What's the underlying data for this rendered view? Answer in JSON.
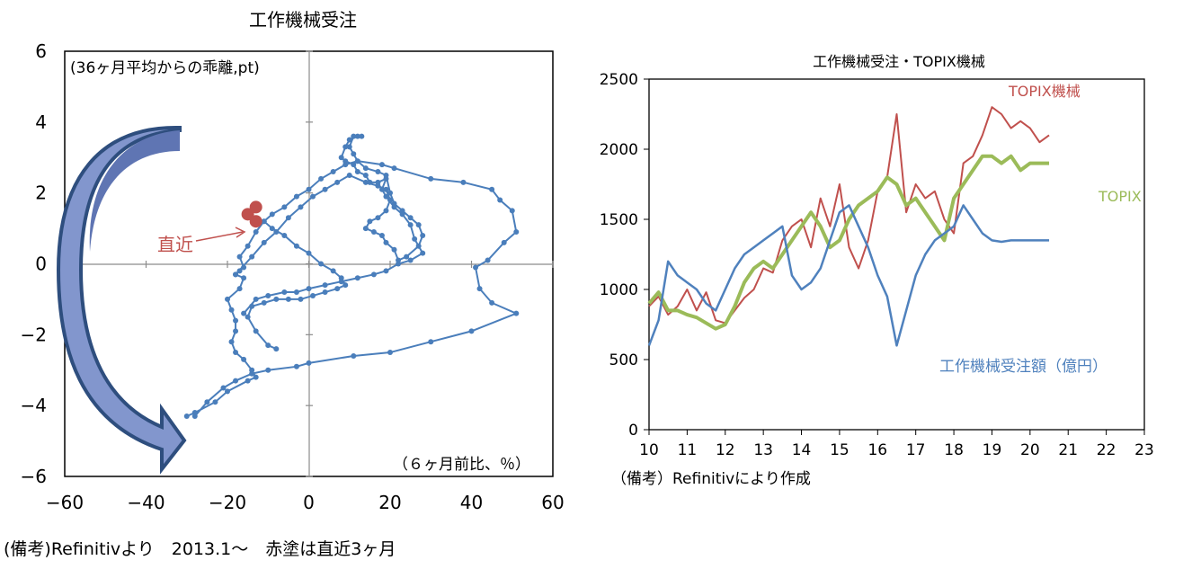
{
  "left_chart": {
    "title": "工作機械受注",
    "inner_label_top": "(36ヶ月平均からの乖離,pt)",
    "inner_label_bottom": "（６ヶ月前比、％）",
    "annotation": "直近",
    "x_ticks": [
      "−60",
      "−40",
      "−20",
      "0",
      "20",
      "40",
      "60"
    ],
    "y_ticks": [
      "6",
      "4",
      "2",
      "0",
      "−2",
      "−4",
      "−6"
    ],
    "footnote": "(備考)Refinitivより　2013.1～　赤塗は直近3ヶ月",
    "colors": {
      "line": "#4a7ebb",
      "recent": "#c0504d",
      "arrow_fill": "#7f93c8",
      "arrow_stroke": "#2e4e7e"
    }
  },
  "right_chart": {
    "title": "工作機械受注・TOPIX機械",
    "x_ticks": [
      "10",
      "11",
      "12",
      "13",
      "14",
      "15",
      "16",
      "17",
      "18",
      "19",
      "20",
      "21",
      "22",
      "23"
    ],
    "y_ticks": [
      "2500",
      "2000",
      "1500",
      "1000",
      "500",
      "0"
    ],
    "labels": {
      "topix_machinery": "TOPIX機械",
      "topix": "TOPIX",
      "orders": "工作機械受注額（億円）"
    },
    "footnote": "（備考）Refinitivにより作成",
    "colors": {
      "topix_machinery": "#c0504d",
      "topix": "#9bbb59",
      "orders": "#4f81bd"
    }
  },
  "chart_data": [
    {
      "type": "scatter",
      "title": "工作機械受注",
      "xlabel": "（６ヶ月前比、％）",
      "ylabel": "(36ヶ月平均からの乖離,pt)",
      "xlim": [
        -60,
        60
      ],
      "ylim": [
        -6,
        6
      ],
      "series": [
        {
          "values": [
            [
              -30,
              -4.3
            ],
            [
              -28,
              -4.2
            ],
            [
              -23,
              -3.9
            ],
            [
              -20,
              -3.6
            ],
            [
              -15,
              -3.3
            ],
            [
              -13,
              -3.2
            ],
            [
              -14,
              -3.0
            ],
            [
              -16,
              -2.7
            ],
            [
              -18,
              -2.5
            ],
            [
              -19,
              -2.2
            ],
            [
              -18,
              -1.9
            ],
            [
              -18,
              -1.6
            ],
            [
              -19,
              -1.3
            ],
            [
              -20,
              -1.0
            ],
            [
              -17,
              -0.7
            ],
            [
              -16,
              -0.4
            ],
            [
              -18,
              -0.3
            ],
            [
              -17,
              -0.2
            ],
            [
              -16,
              -0.1
            ],
            [
              -17,
              0.2
            ],
            [
              -15,
              0.5
            ],
            [
              -13,
              0.9
            ],
            [
              -11,
              1.2
            ],
            [
              -9,
              1.4
            ],
            [
              -6,
              1.6
            ],
            [
              -3,
              1.9
            ],
            [
              0,
              2.1
            ],
            [
              3,
              2.4
            ],
            [
              6,
              2.6
            ],
            [
              9,
              2.8
            ],
            [
              12,
              2.9
            ],
            [
              18,
              2.8
            ],
            [
              21,
              2.7
            ],
            [
              30,
              2.4
            ],
            [
              38,
              2.3
            ],
            [
              45,
              2.1
            ],
            [
              47,
              1.8
            ],
            [
              50,
              1.5
            ],
            [
              51,
              0.9
            ],
            [
              48,
              0.6
            ],
            [
              44,
              0.1
            ],
            [
              41,
              -0.1
            ],
            [
              42,
              -0.7
            ],
            [
              45,
              -1.1
            ],
            [
              51,
              -1.4
            ],
            [
              40,
              -1.9
            ],
            [
              30,
              -2.2
            ],
            [
              20,
              -2.5
            ],
            [
              11,
              -2.6
            ],
            [
              0,
              -2.8
            ],
            [
              -3,
              -2.9
            ],
            [
              -10,
              -3.0
            ],
            [
              -14,
              -3.1
            ],
            [
              -18,
              -3.3
            ],
            [
              -21,
              -3.5
            ],
            [
              -25,
              -3.9
            ],
            [
              -28,
              -4.3
            ]
          ]
        },
        {
          "values": [
            [
              -11,
              1.2
            ],
            [
              -9,
              1.0
            ],
            [
              -6,
              0.8
            ],
            [
              -3,
              0.5
            ],
            [
              0,
              0.3
            ],
            [
              3,
              0.0
            ],
            [
              6,
              -0.2
            ],
            [
              8,
              -0.4
            ],
            [
              9,
              -0.6
            ],
            [
              7,
              -0.7
            ],
            [
              4,
              -0.8
            ],
            [
              1,
              -0.9
            ],
            [
              -2,
              -1.0
            ],
            [
              -5,
              -1.0
            ],
            [
              -8,
              -1.0
            ],
            [
              -11,
              -1.1
            ],
            [
              -14,
              -1.2
            ],
            [
              -15,
              -1.5
            ],
            [
              -13,
              -1.9
            ],
            [
              -10,
              -2.3
            ],
            [
              -8,
              -2.4
            ]
          ]
        },
        {
          "values": [
            [
              -16,
              -1.4
            ],
            [
              -13,
              -1.0
            ],
            [
              -10,
              -0.9
            ],
            [
              -6,
              -0.8
            ],
            [
              -3,
              -0.8
            ],
            [
              0,
              -0.7
            ],
            [
              4,
              -0.6
            ],
            [
              8,
              -0.5
            ],
            [
              12,
              -0.4
            ],
            [
              16,
              -0.3
            ],
            [
              19,
              -0.2
            ],
            [
              22,
              0.0
            ],
            [
              25,
              0.1
            ],
            [
              28,
              0.3
            ],
            [
              26,
              0.7
            ],
            [
              25,
              1.1
            ],
            [
              23,
              1.4
            ],
            [
              21,
              1.6
            ],
            [
              19,
              1.9
            ],
            [
              18,
              2.1
            ],
            [
              19,
              2.4
            ],
            [
              17,
              2.3
            ],
            [
              15,
              2.3
            ],
            [
              14,
              2.5
            ],
            [
              12,
              2.6
            ],
            [
              11,
              2.8
            ],
            [
              9,
              2.9
            ],
            [
              8,
              3.0
            ],
            [
              9,
              3.3
            ],
            [
              10,
              3.5
            ],
            [
              12,
              3.6
            ],
            [
              13,
              3.6
            ]
          ]
        },
        {
          "values": [
            [
              -18,
              -0.3
            ],
            [
              -14,
              0.2
            ],
            [
              -11,
              0.6
            ],
            [
              -8,
              0.9
            ],
            [
              -5,
              1.3
            ],
            [
              -2,
              1.6
            ],
            [
              1,
              1.9
            ],
            [
              4,
              2.1
            ],
            [
              7,
              2.3
            ],
            [
              10,
              2.5
            ],
            [
              14,
              2.3
            ],
            [
              17,
              2.2
            ],
            [
              19,
              2.1
            ],
            [
              20,
              1.8
            ],
            [
              19,
              1.5
            ],
            [
              17,
              1.3
            ],
            [
              15,
              1.2
            ],
            [
              14,
              1.0
            ],
            [
              16,
              0.9
            ],
            [
              18,
              0.8
            ],
            [
              19,
              0.6
            ],
            [
              21,
              0.4
            ],
            [
              22,
              0.1
            ],
            [
              24,
              0.2
            ],
            [
              27,
              0.5
            ],
            [
              28,
              0.8
            ],
            [
              27,
              1.1
            ],
            [
              25,
              1.3
            ],
            [
              23,
              1.5
            ],
            [
              21,
              1.7
            ],
            [
              20,
              2.0
            ],
            [
              19,
              2.5
            ],
            [
              17,
              2.6
            ],
            [
              14,
              2.7
            ],
            [
              12,
              2.9
            ],
            [
              11,
              3.1
            ],
            [
              10,
              3.3
            ],
            [
              11,
              3.6
            ]
          ]
        },
        {
          "name": "直近",
          "values": [
            [
              -15,
              1.4
            ],
            [
              -13,
              1.6
            ],
            [
              -13,
              1.2
            ]
          ]
        }
      ]
    },
    {
      "type": "line",
      "title": "工作機械受注・TOPIX機械",
      "x_start": 2010.0,
      "x_step": 0.25,
      "xlim": [
        2010,
        2023
      ],
      "ylim": [
        0,
        2500
      ],
      "series": [
        {
          "name": "TOPIX機械",
          "values": [
            880,
            950,
            820,
            880,
            1000,
            850,
            980,
            780,
            760,
            850,
            940,
            1000,
            1150,
            1120,
            1350,
            1450,
            1500,
            1300,
            1650,
            1450,
            1750,
            1300,
            1150,
            1350,
            1700,
            1800,
            2250,
            1550,
            1750,
            1650,
            1700,
            1500,
            1400,
            1900,
            1950,
            2100,
            2300,
            2250,
            2150,
            2200,
            2150,
            2050,
            2100
          ]
        },
        {
          "name": "TOPIX",
          "values": [
            900,
            980,
            850,
            850,
            820,
            800,
            760,
            720,
            750,
            880,
            1050,
            1150,
            1200,
            1150,
            1250,
            1350,
            1450,
            1550,
            1450,
            1300,
            1350,
            1500,
            1600,
            1650,
            1700,
            1800,
            1750,
            1600,
            1650,
            1550,
            1450,
            1350,
            1650,
            1750,
            1850,
            1950,
            1950,
            1900,
            1950,
            1850,
            1900,
            1900,
            1900
          ]
        },
        {
          "name": "工作機械受注額（億円）",
          "values": [
            600,
            780,
            1200,
            1100,
            1050,
            1000,
            900,
            850,
            1000,
            1150,
            1250,
            1300,
            1350,
            1400,
            1450,
            1100,
            1000,
            1050,
            1150,
            1350,
            1550,
            1600,
            1450,
            1300,
            1100,
            950,
            600,
            850,
            1100,
            1250,
            1350,
            1400,
            1450,
            1600,
            1500,
            1400,
            1350,
            1340,
            1350,
            1350,
            1350,
            1350,
            1350
          ]
        }
      ]
    }
  ]
}
